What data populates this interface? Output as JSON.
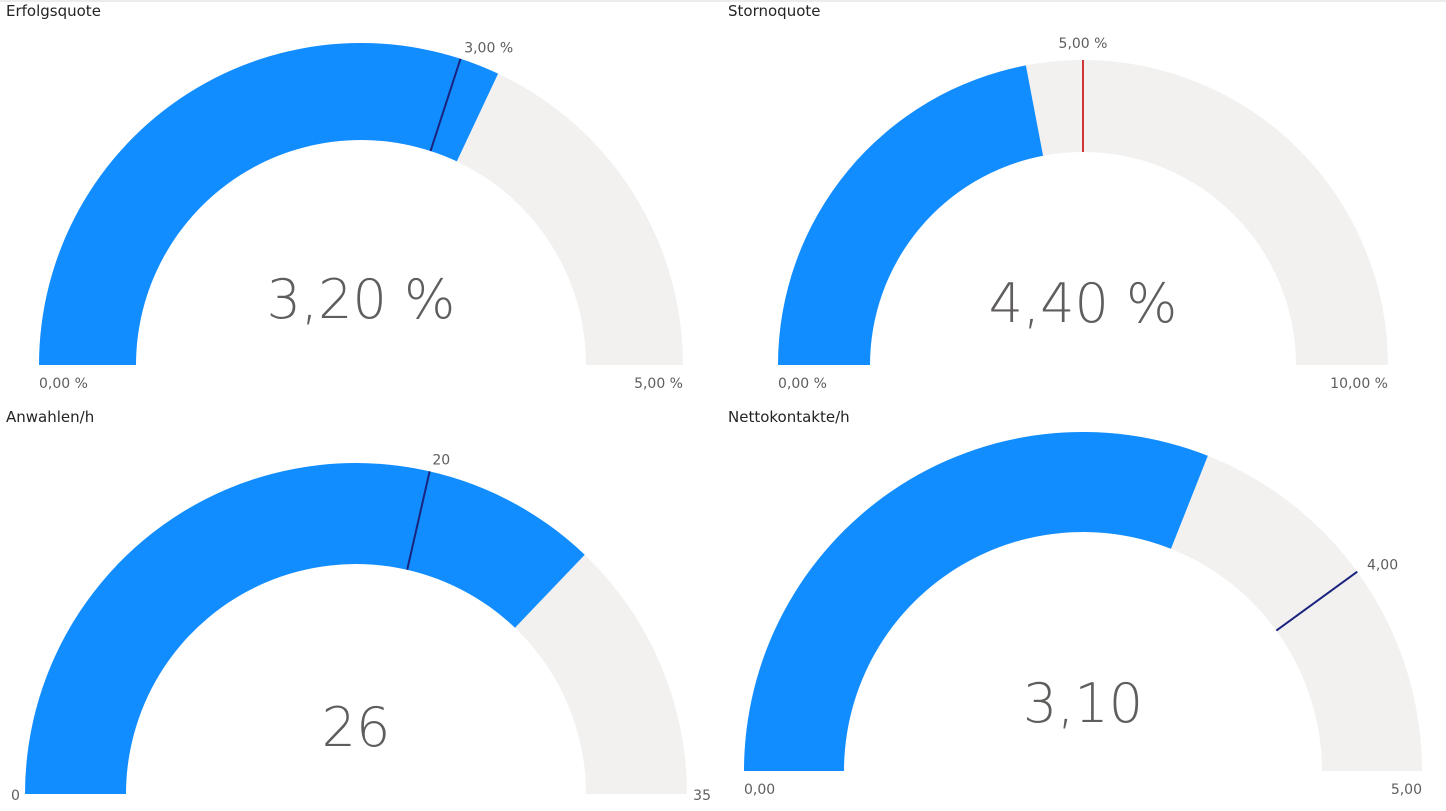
{
  "chart_data": [
    {
      "type": "gauge",
      "title": "Erfolgsquote",
      "value": 3.2,
      "value_label": "3,20 %",
      "min": 0,
      "max": 5,
      "min_label": "0,00 %",
      "max_label": "5,00 %",
      "target": 3.0,
      "target_label": "3,00 %",
      "fill_color": "#118dff",
      "track_color": "#f2f1f0",
      "target_color": "#1a237e"
    },
    {
      "type": "gauge",
      "title": "Stornoquote",
      "value": 4.4,
      "value_label": "4,40 %",
      "min": 0,
      "max": 10,
      "min_label": "0,00 %",
      "max_label": "10,00 %",
      "target": 5.0,
      "target_label": "5,00 %",
      "fill_color": "#118dff",
      "track_color": "#f2f1f0",
      "target_color": "#d13438"
    },
    {
      "type": "gauge",
      "title": "Anwahlen/h",
      "value": 26,
      "value_label": "26",
      "min": 0,
      "max": 35,
      "min_label": "0",
      "max_label": "35",
      "target": 20,
      "target_label": "20",
      "fill_color": "#118dff",
      "track_color": "#f2f1f0",
      "target_color": "#1a237e"
    },
    {
      "type": "gauge",
      "title": "Nettokontakte/h",
      "value": 3.1,
      "value_label": "3,10",
      "min": 0,
      "max": 5,
      "min_label": "0,00",
      "max_label": "5,00",
      "target": 4.0,
      "target_label": "4,00",
      "fill_color": "#118dff",
      "track_color": "#f2f1f0",
      "target_color": "#1a237e"
    }
  ]
}
